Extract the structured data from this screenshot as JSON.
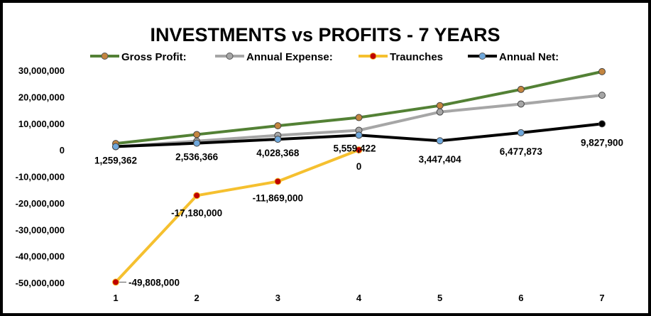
{
  "chart_data": {
    "type": "line",
    "title": "INVESTMENTS vs PROFITS - 7 YEARS",
    "xlabel": "",
    "ylabel": "",
    "x": [
      "1",
      "2",
      "3",
      "4",
      "5",
      "6",
      "7"
    ],
    "ylim": [
      -50000000,
      30000000
    ],
    "yticks": [
      30000000,
      20000000,
      10000000,
      0,
      -10000000,
      -20000000,
      -30000000,
      -40000000,
      -50000000
    ],
    "ytick_labels": [
      "30,000,000",
      "20,000,000",
      "10,000,000",
      "0",
      "-10,000,000",
      "-20,000,000",
      "-30,000,000",
      "-40,000,000",
      "-50,000,000"
    ],
    "grid": false,
    "legend_position": "top",
    "series": [
      {
        "name": "Gross Profit:",
        "color": "#538135",
        "marker_fill": "#c4853f",
        "values": [
          2400000,
          5800000,
          9100000,
          12200000,
          16700000,
          22800000,
          29500000
        ]
      },
      {
        "name": "Annual Expense:",
        "color": "#a6a6a6",
        "marker_fill": "#a6a6a6",
        "values": [
          1200000,
          3300000,
          5500000,
          7400000,
          14300000,
          17300000,
          20600000
        ]
      },
      {
        "name": "Traunches",
        "color": "#f5c02f",
        "marker_fill": "#c00000",
        "values": [
          -49808000,
          -17180000,
          -11869000,
          0,
          null,
          null,
          null
        ],
        "labels": [
          "-49,808,000",
          "-17,180,000",
          "-11,869,000",
          "0",
          null,
          null,
          null
        ]
      },
      {
        "name": "Annual Net:",
        "color": "#000000",
        "marker_fill": "#6fa8dc",
        "last_marker_fill": "#000000",
        "values": [
          1259362,
          2536366,
          4028368,
          5559422,
          3447404,
          6477873,
          9827900
        ],
        "labels": [
          "1,259,362",
          "2,536,366",
          "4,028,368",
          "5,559,422",
          "3,447,404",
          "6,477,873",
          "9,827,900"
        ]
      }
    ]
  }
}
